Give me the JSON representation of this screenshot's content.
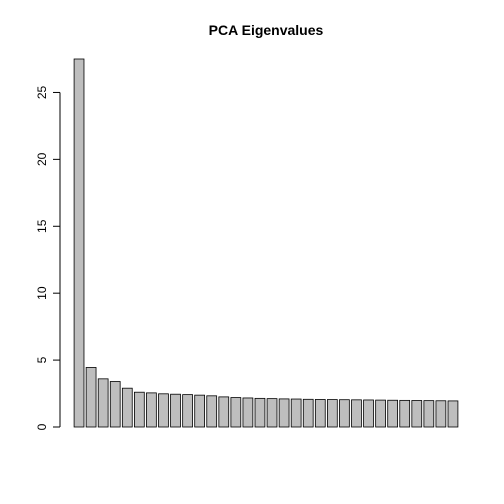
{
  "chart_data": {
    "type": "bar",
    "title": "PCA Eigenvalues",
    "xlabel": "",
    "ylabel": "",
    "ylim": [
      0,
      27.5
    ],
    "yticks": [
      0,
      5,
      10,
      15,
      20,
      25
    ],
    "bar_fill": "#bebebe",
    "bar_border": "#000000",
    "grid": false,
    "values": [
      27.5,
      4.45,
      3.6,
      3.4,
      2.9,
      2.6,
      2.55,
      2.48,
      2.45,
      2.42,
      2.38,
      2.33,
      2.25,
      2.2,
      2.17,
      2.14,
      2.12,
      2.1,
      2.09,
      2.07,
      2.06,
      2.05,
      2.04,
      2.03,
      2.02,
      2.01,
      2.0,
      1.99,
      1.98,
      1.97,
      1.96,
      1.95
    ]
  }
}
